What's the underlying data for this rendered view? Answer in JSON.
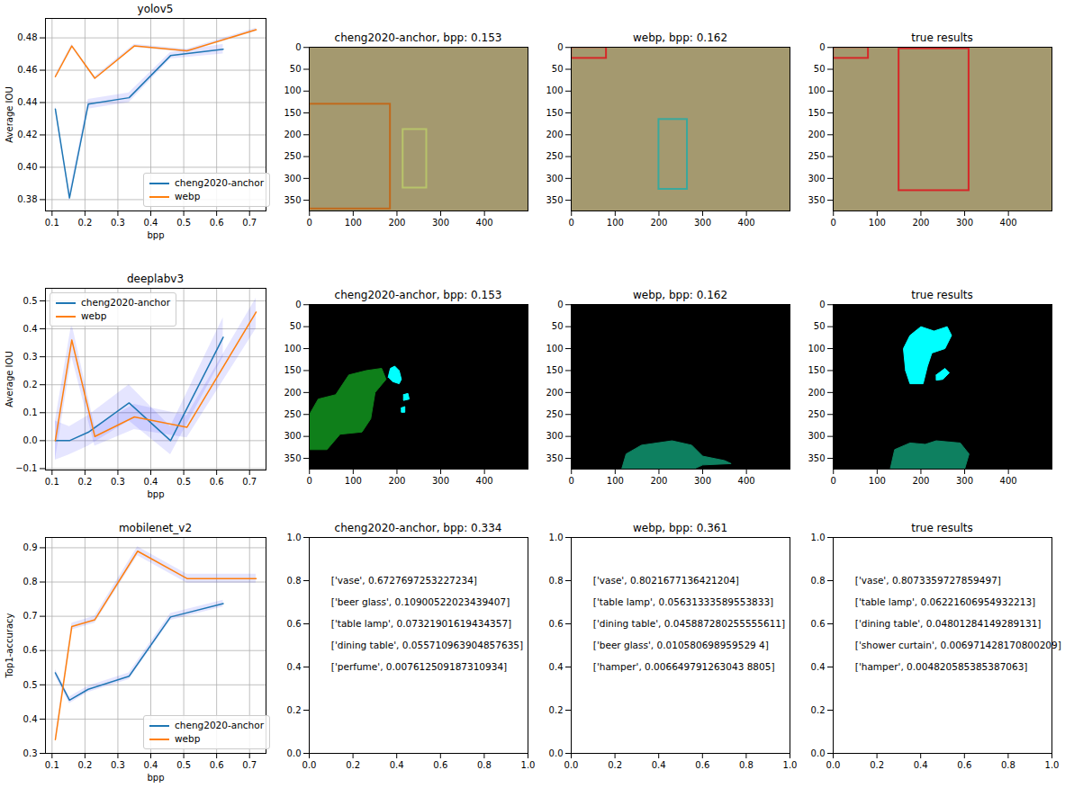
{
  "chart_data": [
    {
      "type": "line",
      "title": "yolov5",
      "xlabel": "bpp",
      "ylabel": "Average IOU",
      "xlim": [
        0.08,
        0.75
      ],
      "ylim": [
        0.373,
        0.492
      ],
      "xticks": [
        0.1,
        0.2,
        0.3,
        0.4,
        0.5,
        0.6,
        0.7
      ],
      "yticks": [
        0.38,
        {
          "value": 0.4,
          "label": "0.40"
        },
        0.42,
        0.44,
        0.46,
        0.48
      ],
      "grid": true,
      "legend": "lower right",
      "series": [
        {
          "name": "cheng2020-anchor",
          "color": "#1f77b4",
          "x": [
            0.11,
            0.153,
            0.21,
            0.334,
            0.46,
            0.62
          ],
          "values": [
            0.436,
            0.381,
            0.439,
            0.443,
            0.469,
            0.473
          ],
          "lower": [
            0.434,
            0.379,
            0.436,
            0.44,
            0.467,
            0.47
          ],
          "upper": [
            0.438,
            0.384,
            0.442,
            0.446,
            0.471,
            0.476
          ]
        },
        {
          "name": "webp",
          "color": "#ff7f0e",
          "x": [
            0.11,
            0.16,
            0.23,
            0.35,
            0.51,
            0.72
          ],
          "values": [
            0.456,
            0.475,
            0.455,
            0.475,
            0.472,
            0.485
          ],
          "lower": [
            0.455,
            0.474,
            0.454,
            0.474,
            0.471,
            0.484
          ],
          "upper": [
            0.457,
            0.476,
            0.456,
            0.476,
            0.473,
            0.486
          ]
        }
      ]
    },
    {
      "type": "detection",
      "title": "cheng2020-anchor, bpp: 0.153",
      "xlim": [
        -0.5,
        499.5
      ],
      "ylim": [
        374.5,
        -0.5
      ],
      "xticks": [
        0,
        100,
        200,
        300,
        400
      ],
      "yticks": [
        0,
        50,
        100,
        150,
        200,
        250,
        300,
        350
      ],
      "boxes": [
        {
          "x1": 0,
          "y1": 130,
          "x2": 185,
          "y2": 370,
          "color": "#c06a1c"
        },
        {
          "x1": 214,
          "y1": 188,
          "x2": 268,
          "y2": 322,
          "color": "#b8c46a"
        }
      ]
    },
    {
      "type": "detection",
      "title": "webp, bpp: 0.162",
      "xlim": [
        -0.5,
        499.5
      ],
      "ylim": [
        374.5,
        -0.5
      ],
      "xticks": [
        0,
        100,
        200,
        300,
        400
      ],
      "yticks": [
        0,
        50,
        100,
        150,
        200,
        250,
        300,
        350
      ],
      "boxes": [
        {
          "x1": 0,
          "y1": 0,
          "x2": 80,
          "y2": 25,
          "color": "#d62728"
        },
        {
          "x1": 200,
          "y1": 165,
          "x2": 265,
          "y2": 325,
          "color": "#3aa89c"
        }
      ]
    },
    {
      "type": "detection",
      "title": "true results",
      "xlim": [
        -0.5,
        499.5
      ],
      "ylim": [
        374.5,
        -0.5
      ],
      "xticks": [
        0,
        100,
        200,
        300,
        400
      ],
      "yticks": [
        0,
        50,
        100,
        150,
        200,
        250,
        300,
        350
      ],
      "boxes": [
        {
          "x1": 0,
          "y1": 0,
          "x2": 80,
          "y2": 25,
          "color": "#d62728"
        },
        {
          "x1": 150,
          "y1": 3,
          "x2": 310,
          "y2": 328,
          "color": "#d62728"
        }
      ]
    },
    {
      "type": "line",
      "title": "deeplabv3",
      "xlabel": "bpp",
      "ylabel": "Average IOU",
      "xlim": [
        0.08,
        0.75
      ],
      "ylim": [
        -0.105,
        0.545
      ],
      "xticks": [
        0.1,
        0.2,
        0.3,
        0.4,
        0.5,
        0.6,
        0.7
      ],
      "yticks": [
        {
          "value": -0.1,
          "label": "−0.1"
        },
        {
          "value": 0,
          "label": "0.0"
        },
        0.1,
        0.2,
        0.3,
        0.4,
        0.5
      ],
      "grid": true,
      "legend": "upper left",
      "series": [
        {
          "name": "cheng2020-anchor",
          "color": "#1f77b4",
          "x": [
            0.11,
            0.153,
            0.21,
            0.334,
            0.46,
            0.62
          ],
          "values": [
            0.0,
            0.0,
            0.03,
            0.135,
            0.0,
            0.37
          ],
          "lower": [
            -0.07,
            -0.05,
            -0.02,
            0.07,
            -0.05,
            0.3
          ],
          "upper": [
            0.07,
            0.05,
            0.09,
            0.2,
            0.05,
            0.44
          ]
        },
        {
          "name": "webp",
          "color": "#ff7f0e",
          "x": [
            0.11,
            0.16,
            0.23,
            0.35,
            0.51,
            0.72
          ],
          "values": [
            0.0,
            0.36,
            0.015,
            0.085,
            0.048,
            0.46
          ],
          "lower": [
            -0.07,
            0.3,
            -0.02,
            0.04,
            0.01,
            0.4
          ],
          "upper": [
            0.07,
            0.42,
            0.05,
            0.13,
            0.09,
            0.51
          ]
        }
      ]
    },
    {
      "type": "segmentation",
      "title": "cheng2020-anchor, bpp: 0.153",
      "xlim": [
        -0.5,
        499.5
      ],
      "ylim": [
        374.5,
        -0.5
      ],
      "xticks": [
        0,
        100,
        200,
        300,
        400
      ],
      "yticks": [
        0,
        50,
        100,
        150,
        200,
        250,
        300,
        350
      ],
      "regions": [
        {
          "color": "#0f7f1a",
          "points": [
            [
              0,
              250
            ],
            [
              20,
              215
            ],
            [
              60,
              205
            ],
            [
              90,
              160
            ],
            [
              130,
              150
            ],
            [
              165,
              145
            ],
            [
              175,
              170
            ],
            [
              150,
              200
            ],
            [
              140,
              260
            ],
            [
              120,
              290
            ],
            [
              70,
              295
            ],
            [
              40,
              330
            ],
            [
              0,
              330
            ]
          ]
        },
        {
          "color": "#00ffff",
          "points": [
            [
              180,
              165
            ],
            [
              185,
              145
            ],
            [
              195,
              140
            ],
            [
              205,
              150
            ],
            [
              210,
              170
            ],
            [
              205,
              180
            ],
            [
              190,
              175
            ]
          ]
        },
        {
          "color": "#00ffff",
          "points": [
            [
              215,
              205
            ],
            [
              225,
              202
            ],
            [
              228,
              215
            ],
            [
              215,
              218
            ]
          ]
        },
        {
          "color": "#00ffff",
          "points": [
            [
              210,
              235
            ],
            [
              218,
              232
            ],
            [
              218,
              245
            ],
            [
              210,
              245
            ]
          ]
        }
      ]
    },
    {
      "type": "segmentation",
      "title": "webp, bpp: 0.162",
      "xlim": [
        -0.5,
        499.5
      ],
      "ylim": [
        374.5,
        -0.5
      ],
      "xticks": [
        0,
        100,
        200,
        300,
        400
      ],
      "yticks": [
        0,
        50,
        100,
        150,
        200,
        250,
        300,
        350
      ],
      "regions": [
        {
          "color": "#0e8060",
          "points": [
            [
              115,
              374
            ],
            [
              125,
              340
            ],
            [
              160,
              320
            ],
            [
              230,
              310
            ],
            [
              275,
              320
            ],
            [
              300,
              345
            ],
            [
              350,
              355
            ],
            [
              365,
              362
            ],
            [
              300,
              365
            ],
            [
              280,
              374
            ]
          ]
        }
      ]
    },
    {
      "type": "segmentation",
      "title": "true results",
      "xlim": [
        -0.5,
        499.5
      ],
      "ylim": [
        374.5,
        -0.5
      ],
      "xticks": [
        0,
        100,
        200,
        300,
        400
      ],
      "yticks": [
        0,
        50,
        100,
        150,
        200,
        250,
        300,
        350
      ],
      "regions": [
        {
          "color": "#00ffff",
          "points": [
            [
              165,
              150
            ],
            [
              160,
              100
            ],
            [
              175,
              70
            ],
            [
              200,
              50
            ],
            [
              230,
              60
            ],
            [
              260,
              50
            ],
            [
              270,
              70
            ],
            [
              255,
              100
            ],
            [
              225,
              110
            ],
            [
              215,
              140
            ],
            [
              205,
              180
            ],
            [
              175,
              180
            ]
          ]
        },
        {
          "color": "#00ffff",
          "points": [
            [
              235,
              160
            ],
            [
              255,
              145
            ],
            [
              265,
              155
            ],
            [
              250,
              170
            ],
            [
              235,
              172
            ]
          ]
        },
        {
          "color": "#0e8060",
          "points": [
            [
              130,
              374
            ],
            [
              140,
              330
            ],
            [
              175,
              315
            ],
            [
              210,
              318
            ],
            [
              235,
              310
            ],
            [
              290,
              315
            ],
            [
              310,
              340
            ],
            [
              300,
              374
            ]
          ]
        }
      ]
    },
    {
      "type": "line",
      "title": "mobilenet_v2",
      "xlabel": "bpp",
      "ylabel": "Top1-accuracy",
      "xlim": [
        0.08,
        0.75
      ],
      "ylim": [
        0.3,
        0.93
      ],
      "xticks": [
        0.1,
        0.2,
        0.3,
        0.4,
        0.5,
        0.6,
        0.7
      ],
      "yticks": [
        0.3,
        0.4,
        0.5,
        0.6,
        0.7,
        0.8,
        0.9
      ],
      "grid": true,
      "legend": "lower right",
      "series": [
        {
          "name": "cheng2020-anchor",
          "color": "#1f77b4",
          "x": [
            0.11,
            0.153,
            0.21,
            0.334,
            0.46,
            0.62
          ],
          "values": [
            0.535,
            0.455,
            0.487,
            0.525,
            0.698,
            0.737
          ],
          "lower": [
            0.525,
            0.445,
            0.478,
            0.515,
            0.688,
            0.727
          ],
          "upper": [
            0.545,
            0.465,
            0.496,
            0.535,
            0.708,
            0.747
          ]
        },
        {
          "name": "webp",
          "color": "#ff7f0e",
          "x": [
            0.11,
            0.16,
            0.23,
            0.36,
            0.51,
            0.72
          ],
          "values": [
            0.34,
            0.67,
            0.69,
            0.89,
            0.81,
            0.81
          ],
          "lower": [
            0.33,
            0.66,
            0.68,
            0.877,
            0.797,
            0.797
          ],
          "upper": [
            0.35,
            0.68,
            0.7,
            0.903,
            0.823,
            0.823
          ]
        }
      ]
    },
    {
      "type": "text",
      "title": "cheng2020-anchor, bpp: 0.334",
      "xlim": [
        0,
        1
      ],
      "ylim": [
        0,
        1
      ],
      "xticks": [
        {
          "value": 0,
          "label": "0.0"
        },
        0.2,
        0.4,
        0.6,
        0.8,
        {
          "value": 1,
          "label": "1.0"
        }
      ],
      "yticks": [
        {
          "value": 0,
          "label": "0.0"
        },
        0.2,
        0.4,
        0.6,
        0.8,
        {
          "value": 1,
          "label": "1.0"
        }
      ],
      "annotations": [
        {
          "x": 0.1,
          "y": 0.8,
          "text": "['vase', 0.6727697253227234]"
        },
        {
          "x": 0.1,
          "y": 0.7,
          "text": "['beer glass', 0.10900522023439407]"
        },
        {
          "x": 0.1,
          "y": 0.6,
          "text": "['table lamp', 0.07321901619434357]"
        },
        {
          "x": 0.1,
          "y": 0.5,
          "text": "['dining table', 0.055710963904857635]"
        },
        {
          "x": 0.1,
          "y": 0.4,
          "text": "['perfume', 0.007612509187310934]"
        }
      ]
    },
    {
      "type": "text",
      "title": "webp, bpp: 0.361",
      "xlim": [
        0,
        1
      ],
      "ylim": [
        0,
        1
      ],
      "xticks": [
        {
          "value": 0,
          "label": "0.0"
        },
        0.2,
        0.4,
        0.6,
        0.8,
        {
          "value": 1,
          "label": "1.0"
        }
      ],
      "yticks": [
        {
          "value": 0,
          "label": "0.0"
        },
        0.2,
        0.4,
        0.6,
        0.8,
        {
          "value": 1,
          "label": "1.0"
        }
      ],
      "annotations": [
        {
          "x": 0.1,
          "y": 0.8,
          "text": "['vase', 0.8021677136421204]"
        },
        {
          "x": 0.1,
          "y": 0.7,
          "text": "['table lamp', 0.05631333589553833]"
        },
        {
          "x": 0.1,
          "y": 0.6,
          "text": "['dining table', 0.045887280255555611]"
        },
        {
          "x": 0.1,
          "y": 0.5,
          "text": "['beer glass', 0.010580698959529 4]"
        },
        {
          "x": 0.1,
          "y": 0.4,
          "text": "['hamper', 0.006649791263043 8805]"
        }
      ]
    },
    {
      "type": "text",
      "title": "true results",
      "xlim": [
        0,
        1
      ],
      "ylim": [
        0,
        1
      ],
      "xticks": [
        {
          "value": 0,
          "label": "0.0"
        },
        0.2,
        0.4,
        0.6,
        0.8,
        {
          "value": 1,
          "label": "1.0"
        }
      ],
      "yticks": [
        {
          "value": 0,
          "label": "0.0"
        },
        0.2,
        0.4,
        0.6,
        0.8,
        {
          "value": 1,
          "label": "1.0"
        }
      ],
      "annotations": [
        {
          "x": 0.1,
          "y": 0.8,
          "text": "['vase', 0.8073359727859497]"
        },
        {
          "x": 0.1,
          "y": 0.7,
          "text": "['table lamp', 0.06221606954932213]"
        },
        {
          "x": 0.1,
          "y": 0.6,
          "text": "['dining table', 0.04801284149289131]"
        },
        {
          "x": 0.1,
          "y": 0.5,
          "text": "['shower curtain', 0.006971428170800209]"
        },
        {
          "x": 0.1,
          "y": 0.4,
          "text": "['hamper', 0.004820585385387063]"
        }
      ]
    }
  ]
}
